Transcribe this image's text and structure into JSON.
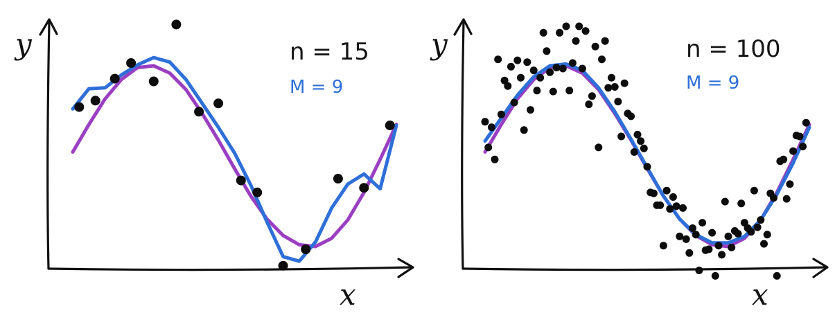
{
  "colors": {
    "true_curve": "#9b3fc2",
    "fit_curve": "#2e6fd8",
    "points": "#0d0d0d",
    "axes": "#111111"
  },
  "chart_data": [
    {
      "type": "scatter",
      "title": "",
      "xlabel": "x",
      "ylabel": "y",
      "annotation_n": "n = 15",
      "annotation_m": "M = 9",
      "xlim": [
        0,
        1
      ],
      "ylim": [
        -1.5,
        1.5
      ],
      "grid": false,
      "legend": "none",
      "points": {
        "x": [
          0.02,
          0.07,
          0.13,
          0.18,
          0.25,
          0.32,
          0.39,
          0.45,
          0.52,
          0.57,
          0.65,
          0.72,
          0.82,
          0.9,
          0.98
        ],
        "y": [
          0.55,
          0.62,
          0.86,
          1.03,
          0.83,
          1.45,
          0.5,
          0.59,
          -0.25,
          -0.38,
          -1.18,
          -1.0,
          -0.23,
          -0.33,
          0.35
        ]
      },
      "true_curve": {
        "x": [
          0.0,
          0.05,
          0.1,
          0.15,
          0.2,
          0.25,
          0.3,
          0.35,
          0.4,
          0.45,
          0.5,
          0.55,
          0.6,
          0.65,
          0.7,
          0.75,
          0.8,
          0.85,
          0.9,
          0.95,
          1.0
        ],
        "y": [
          0.06,
          0.36,
          0.64,
          0.85,
          0.98,
          1.0,
          0.92,
          0.74,
          0.48,
          0.19,
          -0.12,
          -0.42,
          -0.67,
          -0.85,
          -0.95,
          -0.97,
          -0.88,
          -0.68,
          -0.38,
          -0.02,
          0.36
        ]
      },
      "fit_curve": {
        "x": [
          0.0,
          0.05,
          0.1,
          0.15,
          0.2,
          0.25,
          0.3,
          0.35,
          0.4,
          0.45,
          0.5,
          0.55,
          0.6,
          0.65,
          0.7,
          0.75,
          0.8,
          0.85,
          0.9,
          0.95,
          1.0
        ],
        "y": [
          0.53,
          0.75,
          0.76,
          0.9,
          1.01,
          1.09,
          1.04,
          0.85,
          0.59,
          0.33,
          0.05,
          -0.3,
          -0.7,
          -1.08,
          -1.13,
          -0.92,
          -0.55,
          -0.29,
          -0.18,
          -0.34,
          0.35
        ]
      }
    },
    {
      "type": "scatter",
      "title": "",
      "xlabel": "x",
      "ylabel": "y",
      "annotation_n": "n = 100",
      "annotation_m": "M = 9",
      "xlim": [
        0,
        1
      ],
      "ylim": [
        -1.5,
        1.5
      ],
      "grid": false,
      "legend": "none",
      "points": {
        "x": [
          0.0,
          0.01,
          0.02,
          0.03,
          0.04,
          0.05,
          0.06,
          0.07,
          0.08,
          0.09,
          0.1,
          0.11,
          0.12,
          0.13,
          0.14,
          0.15,
          0.16,
          0.17,
          0.18,
          0.19,
          0.2,
          0.21,
          0.22,
          0.23,
          0.24,
          0.25,
          0.26,
          0.27,
          0.28,
          0.29,
          0.3,
          0.31,
          0.32,
          0.33,
          0.34,
          0.35,
          0.36,
          0.37,
          0.38,
          0.39,
          0.4,
          0.41,
          0.42,
          0.43,
          0.44,
          0.45,
          0.46,
          0.47,
          0.48,
          0.49,
          0.5,
          0.51,
          0.52,
          0.53,
          0.54,
          0.55,
          0.56,
          0.57,
          0.58,
          0.59,
          0.6,
          0.61,
          0.62,
          0.63,
          0.64,
          0.65,
          0.66,
          0.67,
          0.68,
          0.69,
          0.7,
          0.71,
          0.72,
          0.73,
          0.74,
          0.75,
          0.76,
          0.77,
          0.78,
          0.79,
          0.8,
          0.81,
          0.82,
          0.83,
          0.84,
          0.85,
          0.86,
          0.87,
          0.88,
          0.89,
          0.9,
          0.91,
          0.92,
          0.93,
          0.94,
          0.95,
          0.96,
          0.97,
          0.98,
          0.99
        ],
        "y": [
          0.39,
          0.11,
          0.33,
          -0.02,
          1.07,
          0.47,
          0.84,
          0.78,
          0.99,
          0.6,
          1.06,
          0.87,
          0.3,
          1.04,
          0.52,
          0.95,
          0.73,
          0.87,
          1.36,
          1.16,
          0.93,
          0.72,
          0.98,
          1.36,
          0.97,
          1.43,
          0.73,
          1.03,
          1.27,
          1.43,
          0.97,
          1.38,
          0.58,
          0.67,
          1.21,
          0.11,
          1.07,
          1.27,
          0.76,
          0.87,
          0.77,
          0.61,
          0.23,
          0.81,
          0.48,
          0.45,
          0.06,
          0.25,
          0.18,
          0.1,
          -0.1,
          -0.38,
          -0.39,
          -0.52,
          -0.52,
          -0.96,
          -0.36,
          -0.56,
          -0.43,
          -0.53,
          -0.86,
          -0.55,
          -0.89,
          -1.04,
          -0.77,
          -0.84,
          -1.23,
          -0.71,
          -1.01,
          -1.0,
          -0.82,
          -1.29,
          -0.96,
          -1.06,
          -0.48,
          -0.86,
          -0.98,
          -0.8,
          -0.83,
          -0.5,
          -0.71,
          -0.77,
          -0.81,
          -0.36,
          -0.76,
          -0.68,
          -0.94,
          -0.84,
          -0.39,
          -0.44,
          -1.29,
          -0.04,
          -0.02,
          -0.45,
          -0.29,
          0.07,
          0.24,
          0.23,
          0.12,
          0.38
        ]
      },
      "true_curve": {
        "x": [
          0.0,
          0.05,
          0.1,
          0.15,
          0.2,
          0.25,
          0.3,
          0.35,
          0.4,
          0.45,
          0.5,
          0.55,
          0.6,
          0.65,
          0.7,
          0.75,
          0.8,
          0.85,
          0.9,
          0.95,
          1.0
        ],
        "y": [
          0.06,
          0.36,
          0.64,
          0.85,
          0.98,
          1.0,
          0.92,
          0.74,
          0.48,
          0.19,
          -0.12,
          -0.42,
          -0.67,
          -0.85,
          -0.95,
          -0.97,
          -0.88,
          -0.68,
          -0.38,
          -0.02,
          0.36
        ]
      },
      "fit_curve": {
        "x": [
          0.0,
          0.05,
          0.1,
          0.15,
          0.2,
          0.25,
          0.3,
          0.35,
          0.4,
          0.45,
          0.5,
          0.55,
          0.6,
          0.65,
          0.7,
          0.75,
          0.8,
          0.85,
          0.9,
          0.95,
          1.0
        ],
        "y": [
          0.18,
          0.43,
          0.68,
          0.88,
          1.0,
          1.02,
          0.95,
          0.76,
          0.5,
          0.2,
          -0.11,
          -0.42,
          -0.67,
          -0.84,
          -0.93,
          -0.93,
          -0.86,
          -0.68,
          -0.4,
          -0.06,
          0.33
        ]
      }
    }
  ]
}
